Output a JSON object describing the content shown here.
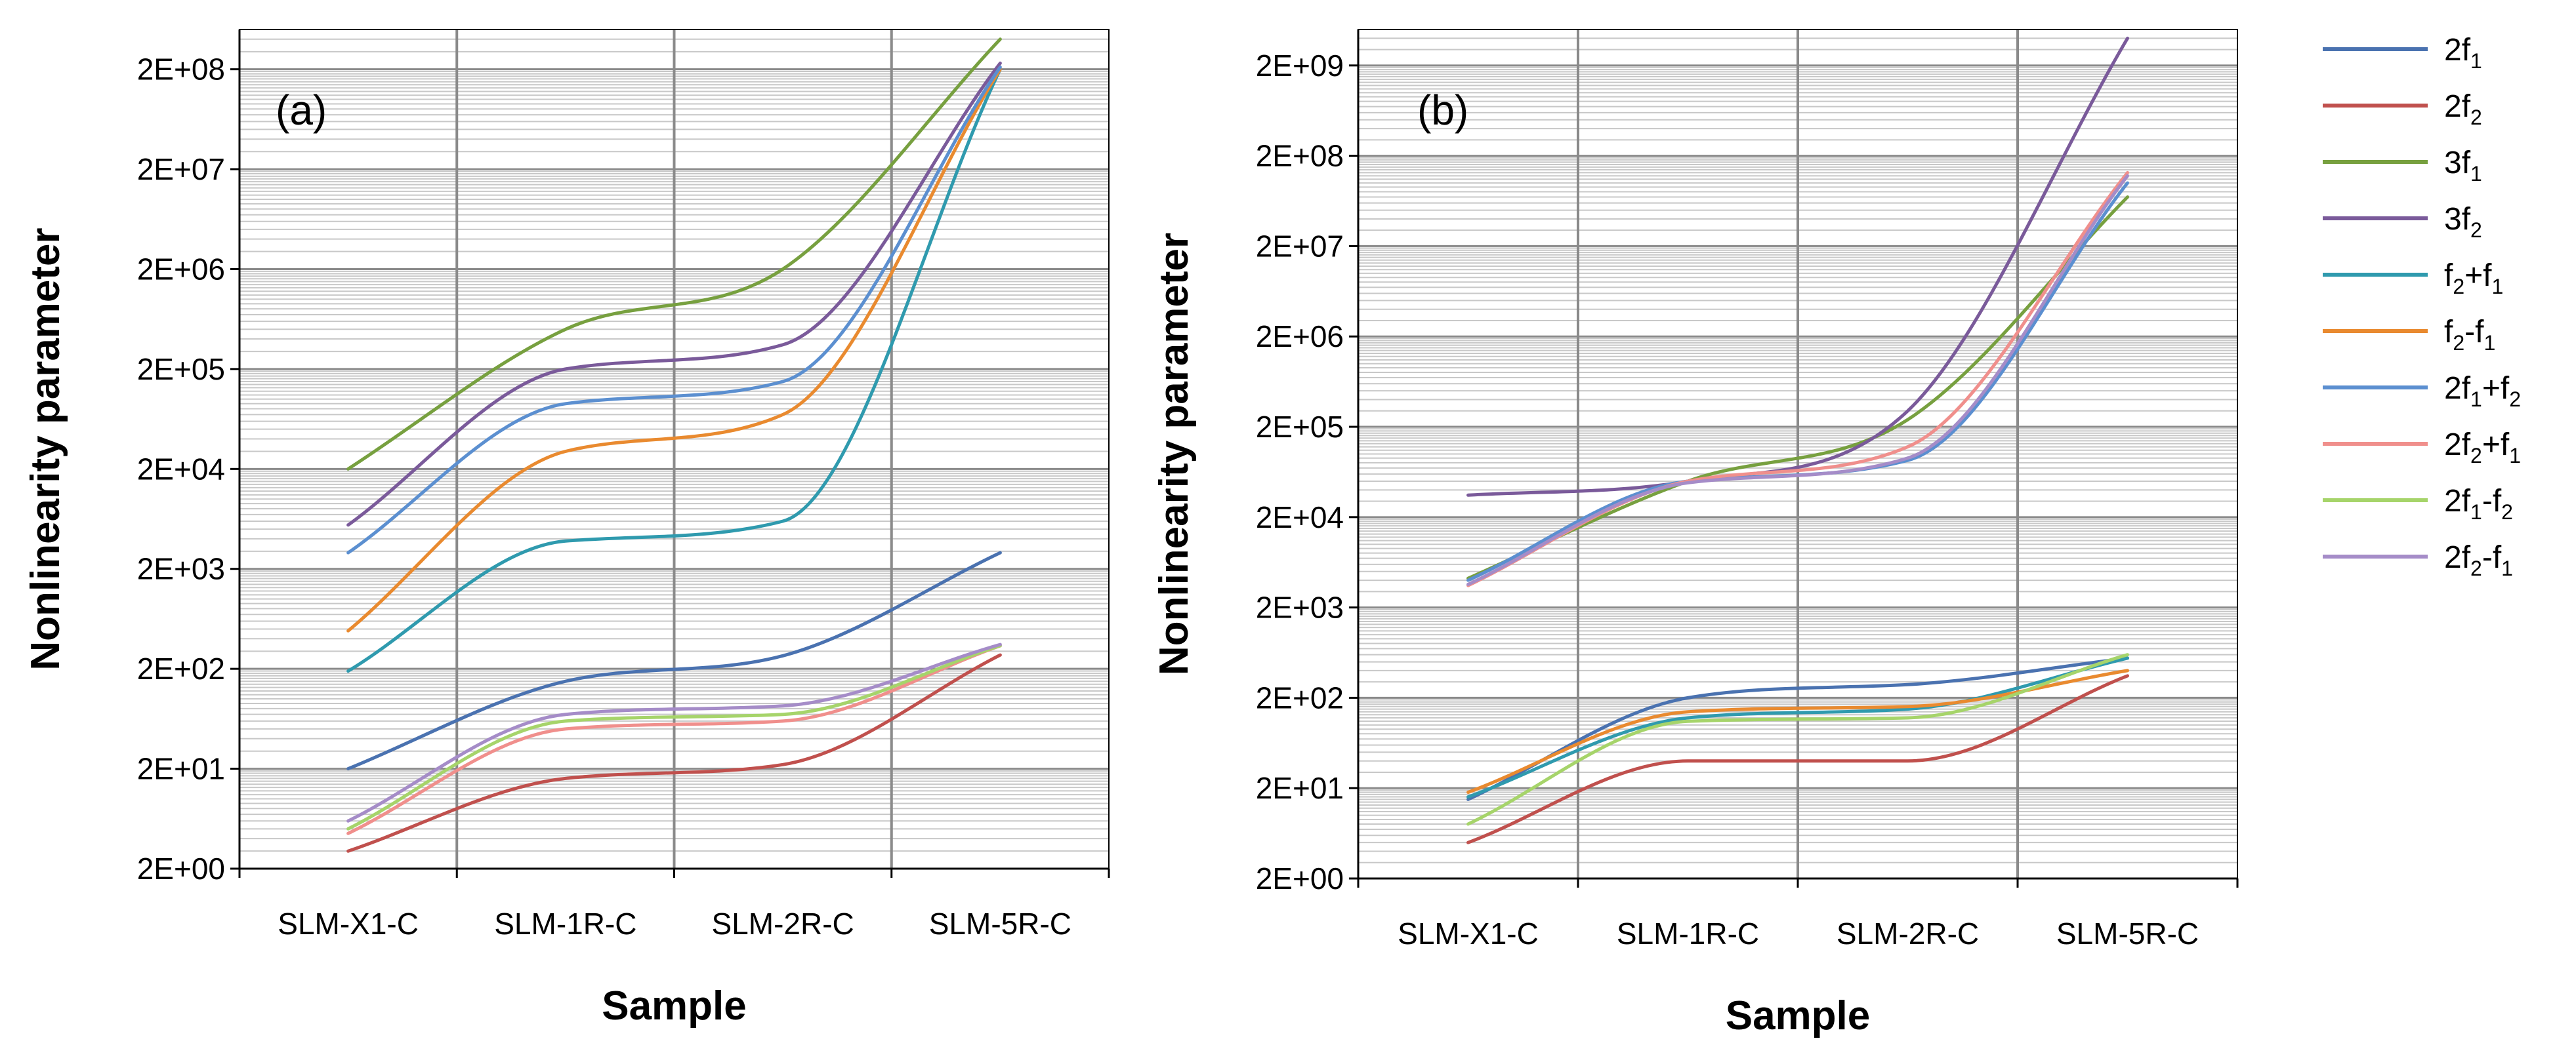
{
  "chart_data": [
    {
      "type": "line",
      "panel_label": "(a)",
      "xlabel": "Sample",
      "ylabel": "Nonlinearity parameter",
      "categories": [
        "SLM-X1-C",
        "SLM-1R-C",
        "SLM-2R-C",
        "SLM-5R-C"
      ],
      "y_scale": "log",
      "ylim": [
        2,
        500000000
      ],
      "y_ticks": [
        2,
        20,
        200,
        2000,
        20000,
        200000,
        2000000,
        20000000,
        200000000
      ],
      "y_tick_labels": [
        "2E+00",
        "2E+01",
        "2E+02",
        "2E+03",
        "2E+04",
        "2E+05",
        "2E+06",
        "2E+07",
        "2E+08"
      ],
      "grid": true,
      "series": [
        {
          "name": "2f1",
          "values": [
            20,
            150,
            270,
            2900
          ]
        },
        {
          "name": "2f2",
          "values": [
            3,
            16,
            22,
            275
          ]
        },
        {
          "name": "3f1",
          "values": [
            20000,
            500000,
            2000000,
            400000000
          ]
        },
        {
          "name": "3f2",
          "values": [
            5500,
            200000,
            350000,
            230000000
          ]
        },
        {
          "name": "f2+f1",
          "values": [
            190,
            3800,
            6000,
            200000000
          ]
        },
        {
          "name": "f2-f1",
          "values": [
            480,
            30000,
            70000,
            200000000
          ]
        },
        {
          "name": "2f1+f2",
          "values": [
            2900,
            90000,
            150000,
            210000000
          ]
        },
        {
          "name": "2f2+f1",
          "values": [
            4.5,
            50,
            60,
            340
          ]
        },
        {
          "name": "2f1-f2",
          "values": [
            5,
            60,
            70,
            340
          ]
        },
        {
          "name": "2f2-f1",
          "values": [
            6,
            70,
            85,
            350
          ]
        }
      ]
    },
    {
      "type": "line",
      "panel_label": "(b)",
      "xlabel": "Sample",
      "ylabel": "Nonlinearity parameter",
      "categories": [
        "SLM-X1-C",
        "SLM-1R-C",
        "SLM-2R-C",
        "SLM-5R-C"
      ],
      "y_scale": "log",
      "ylim": [
        2,
        5000000000
      ],
      "y_ticks": [
        2,
        20,
        200,
        2000,
        20000,
        200000,
        2000000,
        20000000,
        200000000,
        2000000000
      ],
      "y_tick_labels": [
        "2E+00",
        "2E+01",
        "2E+02",
        "2E+03",
        "2E+04",
        "2E+05",
        "2E+06",
        "2E+07",
        "2E+08",
        "2E+09"
      ],
      "grid": true,
      "series": [
        {
          "name": "2f1",
          "values": [
            15,
            200,
            280,
            550
          ]
        },
        {
          "name": "2f2",
          "values": [
            5,
            40,
            40,
            350
          ]
        },
        {
          "name": "3f1",
          "values": [
            4200,
            50000,
            240000,
            70000000
          ]
        },
        {
          "name": "3f2",
          "values": [
            35000,
            50000,
            300000,
            4000000000
          ]
        },
        {
          "name": "f2+f1",
          "values": [
            16,
            120,
            150,
            550
          ]
        },
        {
          "name": "f2-f1",
          "values": [
            18,
            140,
            160,
            400
          ]
        },
        {
          "name": "2f1+f2",
          "values": [
            4000,
            50000,
            85000,
            100000000
          ]
        },
        {
          "name": "2f2+f1",
          "values": [
            3500,
            50000,
            120000,
            130000000
          ]
        },
        {
          "name": "2f1-f2",
          "values": [
            8,
            110,
            120,
            600
          ]
        },
        {
          "name": "2f2-f1",
          "values": [
            3600,
            48000,
            90000,
            120000000
          ]
        }
      ]
    }
  ],
  "legend": {
    "position": "right",
    "items": [
      {
        "base": "2f",
        "sub": "1",
        "rest": "",
        "rest_sub": "",
        "color": "#4a72b0"
      },
      {
        "base": "2f",
        "sub": "2",
        "rest": "",
        "rest_sub": "",
        "color": "#c0504d"
      },
      {
        "base": "3f",
        "sub": "1",
        "rest": "",
        "rest_sub": "",
        "color": "#77a03f"
      },
      {
        "base": "3f",
        "sub": "2",
        "rest": "",
        "rest_sub": "",
        "color": "#7a5a9a"
      },
      {
        "base": "f",
        "sub": "2",
        "rest": "+f",
        "rest_sub": "1",
        "color": "#2f9aae"
      },
      {
        "base": "f",
        "sub": "2",
        "rest": "-f",
        "rest_sub": "1",
        "color": "#e98a2f"
      },
      {
        "base": "2f",
        "sub": "1",
        "rest": "+f",
        "rest_sub": "2",
        "color": "#5b8fd0"
      },
      {
        "base": "2f",
        "sub": "2",
        "rest": "+f",
        "rest_sub": "1",
        "color": "#f08f8c"
      },
      {
        "base": "2f",
        "sub": "1",
        "rest": "-f",
        "rest_sub": "2",
        "color": "#a6d46a"
      },
      {
        "base": "2f",
        "sub": "2",
        "rest": "-f",
        "rest_sub": "1",
        "color": "#a58cc8"
      }
    ]
  }
}
